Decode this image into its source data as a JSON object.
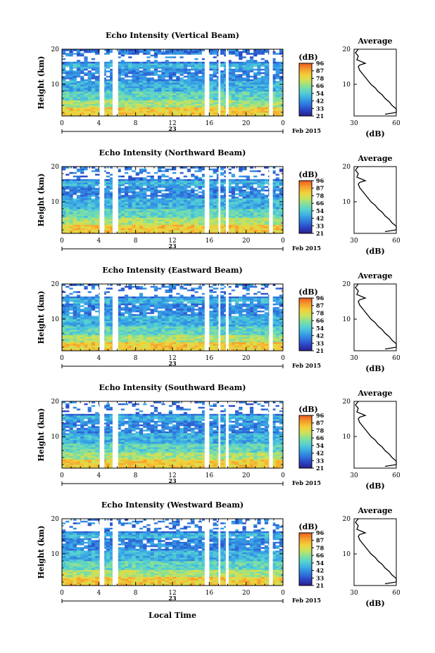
{
  "chart_data": {
    "type": "heatmap",
    "month_label": "Feb 2015",
    "day_label": "23",
    "xlabel": "Local Time",
    "ylabel": "Height (km)",
    "x_ticks": [
      "0",
      "4",
      "8",
      "12",
      "16",
      "20",
      "0"
    ],
    "y_ticks": [
      "20",
      "10"
    ],
    "xlim": [
      0,
      24
    ],
    "ylim": [
      1,
      20
    ],
    "colorbar": {
      "unit": "(dB)",
      "ticks": [
        "96",
        "87",
        "78",
        "66",
        "54",
        "42",
        "33",
        "21"
      ]
    },
    "profile": {
      "title": "Average",
      "xlabel": "(dB)",
      "x_ticks": [
        "30",
        "60"
      ],
      "xlim": [
        30,
        60
      ],
      "ylim": [
        1,
        20
      ],
      "heights": [
        1.5,
        2,
        3,
        4,
        5,
        6,
        7,
        8,
        9,
        10,
        11,
        12,
        13,
        14,
        15,
        15.5,
        16,
        17,
        18,
        19,
        20
      ],
      "values": [
        52,
        60,
        60,
        57,
        55,
        52,
        50,
        47,
        45,
        42,
        40,
        38,
        36,
        34,
        33,
        34,
        38,
        32,
        33,
        31,
        33
      ]
    },
    "data_gaps_hours": [
      [
        4.1,
        4.6
      ],
      [
        5.5,
        6.1
      ],
      [
        15.5,
        16.0
      ],
      [
        17.0,
        17.2
      ],
      [
        17.8,
        18.1
      ],
      [
        22.5,
        22.9
      ]
    ],
    "panels": [
      {
        "title": "Echo Intensity (Vertical Beam)"
      },
      {
        "title": "Echo Intensity (Northward Beam)"
      },
      {
        "title": "Echo Intensity (Eastward Beam)"
      },
      {
        "title": "Echo Intensity (Southward Beam)"
      },
      {
        "title": "Echo Intensity (Westward Beam)"
      }
    ]
  }
}
